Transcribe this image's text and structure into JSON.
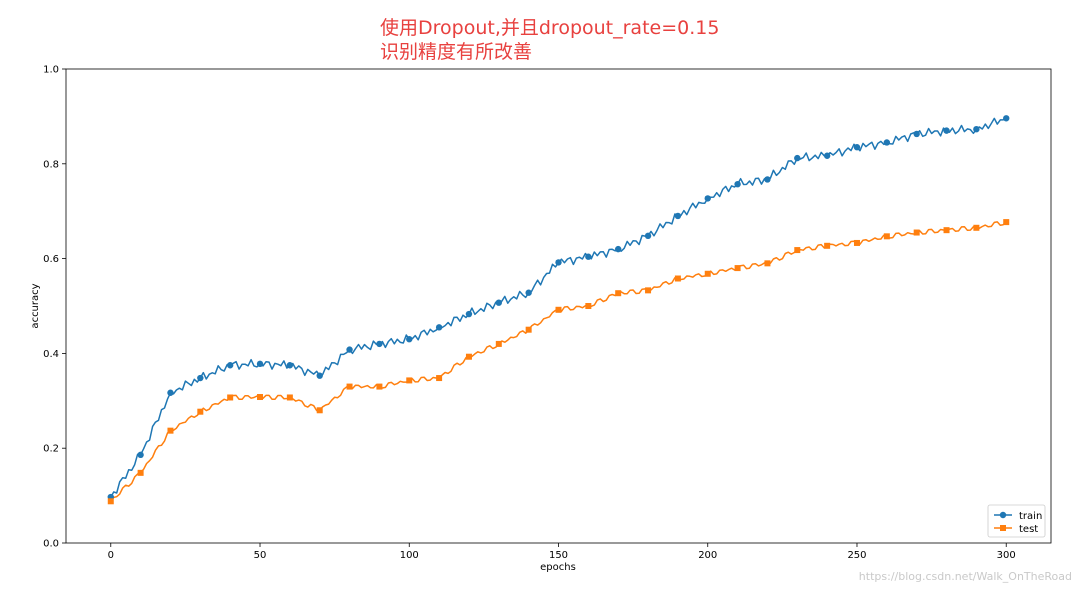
{
  "annotation": {
    "line1": "使用Dropout,并且dropout_rate=0.15",
    "line2": "识别精度有所改善"
  },
  "watermark": "https://blog.csdn.net/Walk_OnTheRoad",
  "colors": {
    "train": "#1f77b4",
    "test": "#ff7f0e",
    "annotation": "#e8413f"
  },
  "chart_data": {
    "type": "line",
    "title": "",
    "xlabel": "epochs",
    "ylabel": "accuracy",
    "xlim": [
      -15,
      315
    ],
    "ylim": [
      0.0,
      1.0
    ],
    "xticks": [
      0,
      50,
      100,
      150,
      200,
      250,
      300
    ],
    "yticks": [
      0.0,
      0.2,
      0.4,
      0.6,
      0.8,
      1.0
    ],
    "grid": false,
    "legend": "lower-right",
    "series": [
      {
        "name": "train",
        "marker": "circle",
        "color": "#1f77b4",
        "x": [
          0,
          10,
          20,
          30,
          40,
          50,
          60,
          70,
          80,
          90,
          100,
          110,
          120,
          130,
          140,
          150,
          160,
          170,
          180,
          190,
          200,
          210,
          220,
          230,
          240,
          250,
          260,
          270,
          280,
          290,
          300
        ],
        "y": [
          0.097,
          0.186,
          0.317,
          0.348,
          0.375,
          0.378,
          0.375,
          0.353,
          0.408,
          0.42,
          0.43,
          0.455,
          0.483,
          0.507,
          0.528,
          0.592,
          0.604,
          0.62,
          0.648,
          0.69,
          0.727,
          0.757,
          0.767,
          0.812,
          0.817,
          0.835,
          0.845,
          0.863,
          0.87,
          0.873,
          0.896
        ]
      },
      {
        "name": "test",
        "marker": "square",
        "color": "#ff7f0e",
        "x": [
          0,
          10,
          20,
          30,
          40,
          50,
          60,
          70,
          80,
          90,
          100,
          110,
          120,
          130,
          140,
          150,
          160,
          170,
          180,
          190,
          200,
          210,
          220,
          230,
          240,
          250,
          260,
          270,
          280,
          290,
          300
        ],
        "y": [
          0.088,
          0.148,
          0.237,
          0.277,
          0.307,
          0.308,
          0.307,
          0.28,
          0.33,
          0.33,
          0.343,
          0.348,
          0.393,
          0.42,
          0.45,
          0.492,
          0.5,
          0.527,
          0.533,
          0.558,
          0.568,
          0.58,
          0.59,
          0.618,
          0.627,
          0.633,
          0.647,
          0.655,
          0.66,
          0.665,
          0.677
        ]
      }
    ]
  }
}
